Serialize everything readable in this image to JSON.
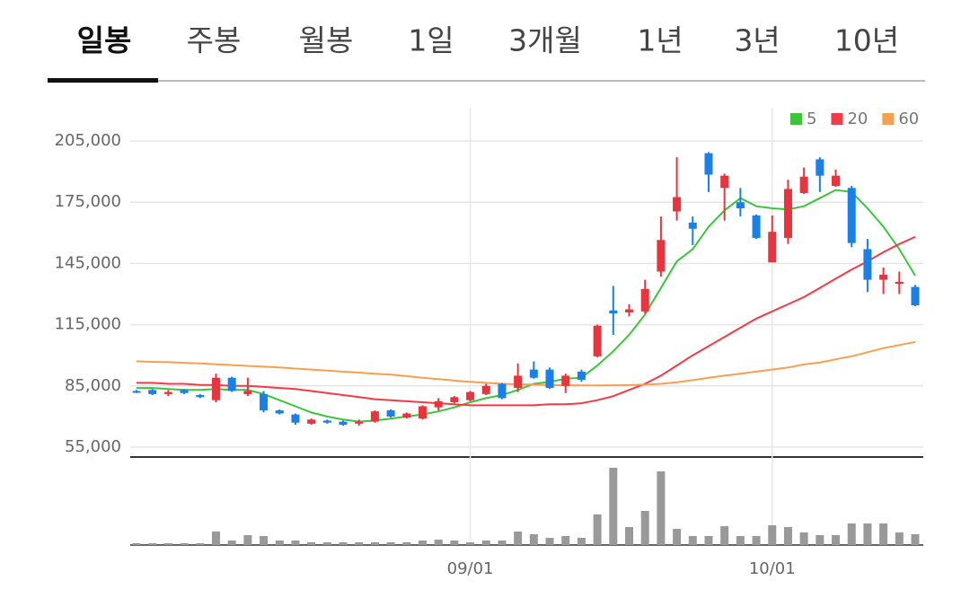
{
  "tabs": {
    "items": [
      "일봉",
      "주봉",
      "월봉",
      "1일",
      "3개월",
      "1년",
      "3년",
      "10년"
    ],
    "selected": 0
  },
  "chart_data": {
    "type": "candlestick",
    "categories": [
      null,
      null,
      null,
      null,
      null,
      null,
      null,
      null,
      null,
      null,
      null,
      null,
      null,
      null,
      null,
      null,
      null,
      null,
      null,
      null,
      null,
      "09/01",
      null,
      null,
      null,
      null,
      null,
      null,
      null,
      null,
      null,
      null,
      null,
      null,
      null,
      null,
      null,
      null,
      null,
      null,
      "10/01",
      null,
      null,
      null,
      null,
      null,
      null,
      null,
      null,
      null
    ],
    "open": [
      82500,
      83000,
      81000,
      83000,
      80500,
      78000,
      89000,
      81000,
      81000,
      73000,
      71000,
      66500,
      68000,
      67500,
      66500,
      67500,
      73000,
      69500,
      69000,
      74500,
      77000,
      78000,
      81000,
      86000,
      84000,
      93000,
      93000,
      85000,
      92000,
      99500,
      122000,
      121000,
      121500,
      141000,
      170500,
      165000,
      199000,
      182000,
      175000,
      168500,
      145500,
      157500,
      179500,
      196000,
      183000,
      182000,
      152000,
      137000,
      135000,
      133500
    ],
    "high": [
      83000,
      83500,
      83000,
      83500,
      81000,
      91000,
      89500,
      89000,
      82500,
      73500,
      71500,
      69000,
      68500,
      68000,
      68500,
      73000,
      73500,
      72000,
      75500,
      79000,
      80000,
      82500,
      86000,
      86500,
      96000,
      97000,
      94000,
      91000,
      93000,
      115000,
      134000,
      125000,
      137000,
      168000,
      197000,
      168000,
      199500,
      189000,
      182000,
      169000,
      168500,
      186000,
      192000,
      197000,
      191000,
      183000,
      157000,
      143000,
      141000,
      134500
    ],
    "low": [
      81500,
      80500,
      80000,
      81000,
      79000,
      77000,
      82000,
      80000,
      72000,
      71000,
      66000,
      66000,
      66500,
      65500,
      65500,
      67000,
      69500,
      69000,
      68500,
      73000,
      76500,
      77500,
      80500,
      78500,
      82000,
      88500,
      83500,
      81500,
      87000,
      99000,
      110000,
      119000,
      120500,
      138500,
      166000,
      154000,
      180000,
      166000,
      168000,
      157000,
      145500,
      154500,
      179000,
      180000,
      182500,
      153000,
      131000,
      130000,
      130000,
      124000
    ],
    "close": [
      82000,
      81000,
      82000,
      81500,
      79500,
      89000,
      82500,
      82500,
      73000,
      71500,
      67000,
      68500,
      67000,
      66000,
      67500,
      72500,
      70000,
      71500,
      75000,
      77500,
      79500,
      82000,
      85000,
      79000,
      90000,
      89000,
      84000,
      90000,
      88000,
      114500,
      120500,
      122500,
      132500,
      156500,
      177500,
      162000,
      188500,
      188000,
      172000,
      157500,
      160500,
      181500,
      187500,
      188000,
      188000,
      155000,
      137000,
      139500,
      136000,
      124500
    ],
    "up_color": "#e8343c",
    "down_color": "#1a7fe6",
    "ylim": [
      55000,
      205000
    ],
    "yticks": [
      {
        "value": 55000,
        "label": "55,000"
      },
      {
        "value": 85000,
        "label": "85,000"
      },
      {
        "value": 115000,
        "label": "115,000"
      },
      {
        "value": 145000,
        "label": "145,000"
      },
      {
        "value": 175000,
        "label": "175,000"
      },
      {
        "value": 205000,
        "label": "205,000"
      }
    ],
    "grid": true,
    "legend": "top-right",
    "series": [
      {
        "name": "5",
        "color": "#3cc43c",
        "values": [
          84000,
          84000,
          83500,
          83000,
          83000,
          83500,
          83000,
          83000,
          81000,
          78000,
          75000,
          72000,
          70000,
          68500,
          67500,
          68000,
          69000,
          70000,
          71000,
          72500,
          74500,
          77000,
          79000,
          80500,
          83000,
          86000,
          87000,
          88500,
          89000,
          95000,
          102000,
          110000,
          120000,
          133000,
          146000,
          152000,
          163000,
          171000,
          177000,
          173000,
          172000,
          171500,
          173000,
          177000,
          181000,
          180000,
          172000,
          163000,
          152000,
          139000
        ]
      },
      {
        "name": "20",
        "color": "#f03c46",
        "values": [
          86500,
          86500,
          86000,
          86000,
          85500,
          85500,
          85000,
          85000,
          84500,
          84000,
          83500,
          82500,
          81500,
          80500,
          79500,
          78500,
          78000,
          77500,
          77000,
          76500,
          76000,
          75500,
          75500,
          75500,
          75500,
          75500,
          76000,
          76000,
          76500,
          78000,
          80000,
          83000,
          86000,
          90000,
          95000,
          100000,
          104500,
          109000,
          113500,
          118000,
          121500,
          125000,
          128500,
          133000,
          137500,
          142000,
          146000,
          150500,
          154500,
          158000
        ]
      },
      {
        "name": "60",
        "color": "#f5a050",
        "values": [
          97000,
          96800,
          96600,
          96300,
          96000,
          95600,
          95200,
          94800,
          94400,
          94000,
          93500,
          93000,
          92500,
          92000,
          91500,
          91000,
          90500,
          89800,
          89000,
          88300,
          87600,
          87000,
          86500,
          86000,
          85800,
          85600,
          85400,
          85300,
          85200,
          85200,
          85300,
          85400,
          85600,
          86000,
          86800,
          87800,
          89000,
          90000,
          91000,
          92000,
          93000,
          94000,
          95500,
          96500,
          98000,
          99500,
          101500,
          103500,
          105000,
          106500
        ]
      }
    ],
    "volume": {
      "color": "#999999",
      "ylim": [
        0,
        90
      ],
      "values": [
        2,
        2,
        2,
        2,
        2,
        15,
        5,
        11,
        10,
        5,
        5,
        3,
        3,
        3,
        3,
        3,
        3,
        3,
        5,
        6,
        5,
        3,
        5,
        5,
        15,
        12,
        8,
        10,
        8,
        34,
        86,
        20,
        38,
        82,
        18,
        10,
        10,
        21,
        10,
        10,
        22,
        20,
        14,
        11,
        11,
        24,
        24,
        24,
        14,
        12
      ]
    }
  }
}
